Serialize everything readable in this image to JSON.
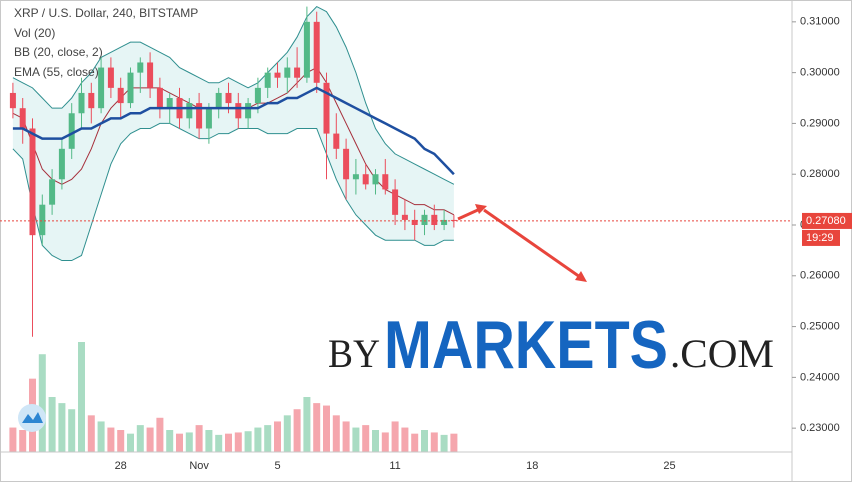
{
  "chart_data": {
    "type": "candlestick",
    "title": "XRP / U.S. Dollar, 240, BITSTAMP",
    "categories": [
      null,
      null,
      null,
      null,
      null,
      null,
      null,
      null,
      null,
      null,
      null,
      "28",
      null,
      null,
      null,
      null,
      null,
      null,
      null,
      "Nov",
      null,
      null,
      null,
      null,
      null,
      null,
      null,
      "5",
      null,
      null,
      null,
      null,
      null,
      null,
      null,
      null,
      null,
      null,
      null,
      "11",
      null,
      null,
      null,
      null,
      null,
      null,
      null,
      null,
      null,
      null,
      null,
      null,
      null,
      "18",
      null,
      null,
      null,
      null,
      null,
      null,
      null,
      null,
      null,
      null,
      null,
      null,
      null,
      "25",
      null,
      null,
      null,
      null,
      null,
      null,
      null,
      null,
      null,
      null,
      null,
      null
    ],
    "ohlc": {
      "up_color": "#53b987",
      "down_color": "#eb4d5c",
      "open": [
        0.296,
        0.293,
        0.289,
        0.268,
        0.274,
        0.279,
        0.285,
        0.292,
        0.296,
        0.293,
        0.301,
        0.297,
        0.294,
        0.3,
        0.302,
        0.297,
        0.293,
        0.295,
        0.291,
        0.294,
        0.289,
        0.293,
        0.296,
        0.294,
        0.291,
        0.294,
        0.297,
        0.3,
        0.299,
        0.301,
        0.299,
        0.31,
        0.298,
        0.288,
        0.285,
        0.279,
        0.28,
        0.278,
        0.28,
        0.277,
        0.272,
        0.271,
        0.27,
        0.272,
        0.27,
        0.271,
        null,
        null,
        null,
        null,
        null,
        null,
        null,
        null,
        null,
        null,
        null,
        null,
        null,
        null,
        null,
        null,
        null,
        null,
        null,
        null,
        null,
        null,
        null,
        null,
        null,
        null,
        null,
        null,
        null,
        null,
        null,
        null,
        null,
        null
      ],
      "high": [
        0.298,
        0.295,
        0.291,
        0.276,
        0.281,
        0.287,
        0.294,
        0.299,
        0.298,
        0.303,
        0.303,
        0.299,
        0.301,
        0.303,
        0.304,
        0.299,
        0.296,
        0.297,
        0.295,
        0.296,
        0.294,
        0.297,
        0.298,
        0.296,
        0.295,
        0.299,
        0.301,
        0.302,
        0.303,
        0.305,
        0.313,
        0.312,
        0.3,
        0.292,
        0.287,
        0.283,
        0.282,
        0.281,
        0.283,
        0.279,
        0.275,
        0.273,
        0.273,
        0.274,
        0.273,
        0.272,
        null,
        null,
        null,
        null,
        null,
        null,
        null,
        null,
        null,
        null,
        null,
        null,
        null,
        null,
        null,
        null,
        null,
        null,
        null,
        null,
        null,
        null,
        null,
        null,
        null,
        null,
        null,
        null,
        null,
        null,
        null,
        null,
        null,
        null
      ],
      "low": [
        0.291,
        0.286,
        0.248,
        0.266,
        0.272,
        0.277,
        0.283,
        0.289,
        0.29,
        0.292,
        0.295,
        0.291,
        0.293,
        0.296,
        0.295,
        0.291,
        0.29,
        0.289,
        0.289,
        0.287,
        0.286,
        0.291,
        0.292,
        0.289,
        0.289,
        0.292,
        0.295,
        0.297,
        0.296,
        0.297,
        0.298,
        0.296,
        0.279,
        0.283,
        0.275,
        0.276,
        0.277,
        0.276,
        0.276,
        0.27,
        0.269,
        0.267,
        0.268,
        0.269,
        0.269,
        0.2695,
        null,
        null,
        null,
        null,
        null,
        null,
        null,
        null,
        null,
        null,
        null,
        null,
        null,
        null,
        null,
        null,
        null,
        null,
        null,
        null,
        null,
        null,
        null,
        null,
        null,
        null,
        null,
        null,
        null,
        null,
        null,
        null,
        null,
        null
      ],
      "close": [
        0.293,
        0.289,
        0.268,
        0.274,
        0.279,
        0.285,
        0.292,
        0.296,
        0.293,
        0.301,
        0.297,
        0.294,
        0.3,
        0.302,
        0.297,
        0.293,
        0.295,
        0.291,
        0.294,
        0.289,
        0.293,
        0.296,
        0.294,
        0.291,
        0.294,
        0.297,
        0.3,
        0.299,
        0.301,
        0.299,
        0.31,
        0.298,
        0.288,
        0.285,
        0.279,
        0.28,
        0.278,
        0.28,
        0.277,
        0.272,
        0.271,
        0.27,
        0.272,
        0.27,
        0.271,
        0.2708,
        null,
        null,
        null,
        null,
        null,
        null,
        null,
        null,
        null,
        null,
        null,
        null,
        null,
        null,
        null,
        null,
        null,
        null,
        null,
        null,
        null,
        null,
        null,
        null,
        null,
        null,
        null,
        null,
        null,
        null,
        null,
        null,
        null,
        null
      ]
    },
    "volume": {
      "name": "Vol (20)",
      "values": [
        20,
        18,
        60,
        80,
        45,
        40,
        35,
        90,
        30,
        25,
        20,
        18,
        15,
        22,
        20,
        28,
        18,
        15,
        16,
        22,
        18,
        14,
        15,
        16,
        17,
        20,
        22,
        25,
        30,
        35,
        45,
        40,
        38,
        30,
        25,
        20,
        22,
        18,
        16,
        25,
        20,
        15,
        18,
        16,
        14,
        15,
        null,
        null,
        null,
        null,
        null,
        null,
        null,
        null,
        null,
        null,
        null,
        null,
        null,
        null,
        null,
        null,
        null,
        null,
        null,
        null,
        null,
        null,
        null,
        null,
        null,
        null,
        null,
        null,
        null,
        null,
        null,
        null,
        null,
        null
      ]
    },
    "bb": {
      "name": "BB (20, close, 2)",
      "color": "#2f8f8f",
      "fill": "#e6f5f5",
      "basis_color": "#a62f3b",
      "upper": [
        0.299,
        0.298,
        0.297,
        0.295,
        0.293,
        0.293,
        0.295,
        0.298,
        0.3,
        0.303,
        0.304,
        0.305,
        0.306,
        0.306,
        0.305,
        0.304,
        0.303,
        0.301,
        0.3,
        0.299,
        0.298,
        0.298,
        0.299,
        0.298,
        0.297,
        0.298,
        0.3,
        0.302,
        0.304,
        0.307,
        0.311,
        0.313,
        0.312,
        0.309,
        0.305,
        0.3,
        0.294,
        0.289,
        0.286,
        0.284,
        0.283,
        0.282,
        0.281,
        0.28,
        0.279,
        0.278,
        null,
        null,
        null,
        null,
        null,
        null,
        null,
        null,
        null,
        null,
        null,
        null,
        null,
        null,
        null,
        null,
        null,
        null,
        null,
        null,
        null,
        null,
        null,
        null,
        null,
        null,
        null,
        null,
        null,
        null,
        null,
        null,
        null,
        null
      ],
      "basis": [
        0.292,
        0.291,
        0.286,
        0.281,
        0.279,
        0.278,
        0.279,
        0.281,
        0.285,
        0.29,
        0.293,
        0.295,
        0.297,
        0.297,
        0.297,
        0.297,
        0.296,
        0.295,
        0.294,
        0.293,
        0.293,
        0.293,
        0.293,
        0.293,
        0.293,
        0.294,
        0.294,
        0.295,
        0.296,
        0.298,
        0.3,
        0.301,
        0.298,
        0.294,
        0.29,
        0.286,
        0.282,
        0.279,
        0.277,
        0.276,
        0.275,
        0.274,
        0.274,
        0.273,
        0.273,
        0.272,
        null,
        null,
        null,
        null,
        null,
        null,
        null,
        null,
        null,
        null,
        null,
        null,
        null,
        null,
        null,
        null,
        null,
        null,
        null,
        null,
        null,
        null,
        null,
        null,
        null,
        null,
        null,
        null,
        null,
        null,
        null,
        null,
        null,
        null
      ],
      "lower": [
        0.285,
        0.283,
        0.274,
        0.266,
        0.264,
        0.263,
        0.263,
        0.264,
        0.27,
        0.276,
        0.282,
        0.286,
        0.288,
        0.289,
        0.289,
        0.29,
        0.29,
        0.289,
        0.288,
        0.287,
        0.287,
        0.288,
        0.288,
        0.289,
        0.289,
        0.289,
        0.288,
        0.288,
        0.288,
        0.289,
        0.289,
        0.289,
        0.284,
        0.279,
        0.275,
        0.272,
        0.27,
        0.268,
        0.267,
        0.267,
        0.267,
        0.267,
        0.266,
        0.266,
        0.267,
        0.267,
        null,
        null,
        null,
        null,
        null,
        null,
        null,
        null,
        null,
        null,
        null,
        null,
        null,
        null,
        null,
        null,
        null,
        null,
        null,
        null,
        null,
        null,
        null,
        null,
        null,
        null,
        null,
        null,
        null,
        null,
        null,
        null,
        null,
        null
      ]
    },
    "ema": {
      "name": "EMA (55, close)",
      "color": "#1e4fa0",
      "values": [
        0.289,
        0.289,
        0.288,
        0.287,
        0.287,
        0.287,
        0.288,
        0.289,
        0.289,
        0.29,
        0.291,
        0.291,
        0.292,
        0.292,
        0.293,
        0.293,
        0.293,
        0.293,
        0.293,
        0.293,
        0.293,
        0.293,
        0.293,
        0.293,
        0.293,
        0.293,
        0.294,
        0.294,
        0.295,
        0.295,
        0.296,
        0.297,
        0.296,
        0.295,
        0.294,
        0.293,
        0.292,
        0.291,
        0.29,
        0.289,
        0.288,
        0.287,
        0.285,
        0.284,
        0.282,
        0.28,
        null,
        null,
        null,
        null,
        null,
        null,
        null,
        null,
        null,
        null,
        null,
        null,
        null,
        null,
        null,
        null,
        null,
        null,
        null,
        null,
        null,
        null,
        null,
        null,
        null,
        null,
        null,
        null,
        null,
        null,
        null,
        null,
        null,
        null
      ]
    },
    "ylim": [
      0.2257,
      0.3143
    ],
    "yticks": [
      {
        "value": 0.23,
        "label": "0.23000"
      },
      {
        "value": 0.24,
        "label": "0.24000"
      },
      {
        "value": 0.25,
        "label": "0.25000"
      },
      {
        "value": 0.26,
        "label": "0.26000"
      },
      {
        "value": 0.27,
        "label": "0.27000"
      },
      {
        "value": 0.28,
        "label": "0.28000"
      },
      {
        "value": 0.29,
        "label": "0.29000"
      },
      {
        "value": 0.3,
        "label": "0.30000"
      },
      {
        "value": 0.31,
        "label": "0.31000"
      }
    ],
    "last_price": {
      "value": 0.2708,
      "label": "0.27080",
      "color": "#e8453c"
    },
    "countdown": "19:29",
    "watermark": {
      "prefix": "BY",
      "brand": "MARKETS",
      "suffix": ".COM"
    }
  }
}
